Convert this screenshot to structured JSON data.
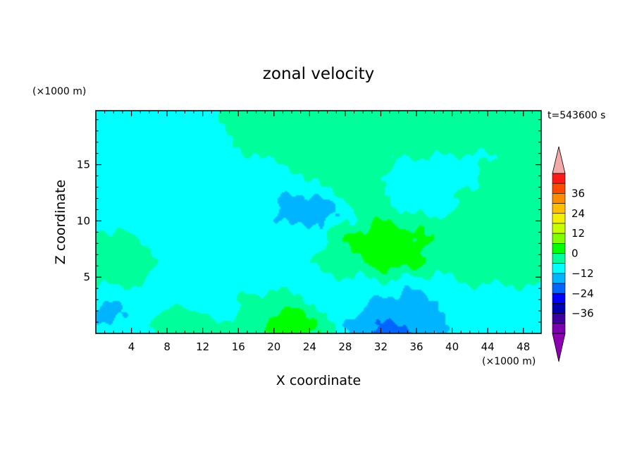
{
  "chart_data": {
    "type": "heatmap",
    "title": "zonal velocity",
    "time_label": "t=543600 s",
    "xlabel": "X coordinate",
    "ylabel": "Z coordinate",
    "x_unit": "(×1000 m)",
    "y_unit": "(×1000 m)",
    "xlim": [
      0,
      50
    ],
    "ylim": [
      0,
      19.8
    ],
    "x_ticks": [
      4,
      8,
      12,
      16,
      20,
      24,
      28,
      32,
      36,
      40,
      44,
      48
    ],
    "y_ticks": [
      5,
      10,
      15
    ],
    "colorbar": {
      "ticks": [
        36,
        24,
        12,
        0,
        -12,
        -24,
        -36
      ],
      "levels": [
        42,
        36,
        30,
        24,
        18,
        12,
        6,
        0,
        -6,
        -12,
        -18,
        -24,
        -30,
        -36,
        -42
      ],
      "colors": [
        "#ff1a1a",
        "#ff4a00",
        "#ff8c00",
        "#ffbf00",
        "#f0f000",
        "#c8ff00",
        "#80ff00",
        "#00ff00",
        "#00ff9a",
        "#00ffff",
        "#00b4ff",
        "#0066ff",
        "#0000ff",
        "#0000b0",
        "#3c00a0",
        "#7a00b0"
      ],
      "over_color": "#f4a8a8",
      "under_color": "#8b00b0"
    },
    "features": [
      {
        "x": 33,
        "z": 7.5,
        "value": 13
      },
      {
        "x": 31,
        "z": 8.2,
        "value": 9
      },
      {
        "x": 29.5,
        "z": 7.0,
        "value": 4
      },
      {
        "x": 29,
        "z": 13.5,
        "value": 4
      },
      {
        "x": 45,
        "z": 6.5,
        "value": 9
      },
      {
        "x": 47,
        "z": 6.5,
        "value": 3
      },
      {
        "x": 1,
        "z": 6.0,
        "value": 4
      },
      {
        "x": 21,
        "z": 0.8,
        "value": 11
      },
      {
        "x": 19,
        "z": 1.5,
        "value": 5
      },
      {
        "x": 11,
        "z": 0.3,
        "value": 3
      },
      {
        "x": 24,
        "z": 11.0,
        "value": -10
      },
      {
        "x": 21,
        "z": 10.5,
        "value": -7
      },
      {
        "x": 20,
        "z": 8.0,
        "value": -5
      },
      {
        "x": 17,
        "z": 12.5,
        "value": -4
      },
      {
        "x": 20,
        "z": 5.5,
        "value": -3
      },
      {
        "x": 12,
        "z": 6.5,
        "value": -3
      },
      {
        "x": 10,
        "z": 9.0,
        "value": -3
      },
      {
        "x": 3,
        "z": 12.0,
        "value": -2
      },
      {
        "x": 37,
        "z": 13.3,
        "value": -5
      },
      {
        "x": 33,
        "z": 2.0,
        "value": -9
      },
      {
        "x": 33.5,
        "z": 0.4,
        "value": -19
      },
      {
        "x": 37,
        "z": 2.5,
        "value": -8
      },
      {
        "x": 46,
        "z": 1.5,
        "value": -5
      },
      {
        "x": 1.5,
        "z": 2.0,
        "value": -8
      },
      {
        "x": 15,
        "z": 2.0,
        "value": -3
      },
      {
        "x": 28,
        "z": 3.5,
        "value": -3
      },
      {
        "x": 45,
        "z": 3.5,
        "value": -2
      },
      {
        "x": 22,
        "z": 17.5,
        "value": 1
      },
      {
        "x": 36,
        "z": 17.5,
        "value": 2
      },
      {
        "x": 8,
        "z": 16.5,
        "value": -1
      },
      {
        "x": 43,
        "z": 12.0,
        "value": 1
      }
    ]
  }
}
